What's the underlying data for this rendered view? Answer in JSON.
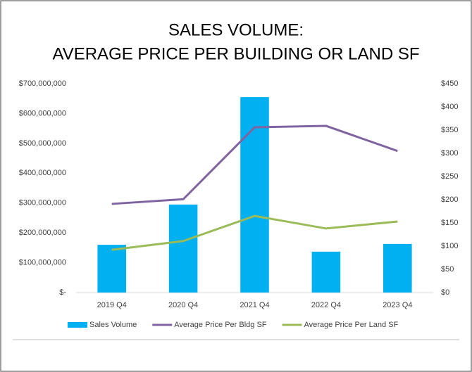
{
  "chart_data": {
    "type": "bar_line",
    "title": [
      "SALES VOLUME:",
      "AVERAGE PRICE PER BUILDING OR LAND SF"
    ],
    "categories": [
      "2019 Q4",
      "2020 Q4",
      "2021 Q4",
      "2022 Q4",
      "2023 Q4"
    ],
    "series": [
      {
        "name": "Sales Volume",
        "type": "bar",
        "color": "#00b0f0",
        "axis": "y",
        "values": [
          160000000,
          295000000,
          655000000,
          137000000,
          163000000
        ]
      },
      {
        "name": "Average Price Per Bldg SF",
        "type": "line",
        "color": "#8064a2",
        "axis": "y2",
        "values": [
          191,
          201,
          356,
          359,
          305
        ]
      },
      {
        "name": "Average Price Per Land SF",
        "type": "line",
        "color": "#9bbb59",
        "axis": "y2",
        "values": [
          92,
          111,
          165,
          138,
          153
        ]
      }
    ],
    "ylim": [
      0,
      700000000
    ],
    "yticks": [
      {
        "value": 0,
        "label": "$-"
      },
      {
        "value": 100000000,
        "label": "$100,000,000"
      },
      {
        "value": 200000000,
        "label": "$200,000,000"
      },
      {
        "value": 300000000,
        "label": "$300,000,000"
      },
      {
        "value": 400000000,
        "label": "$400,000,000"
      },
      {
        "value": 500000000,
        "label": "$500,000,000"
      },
      {
        "value": 600000000,
        "label": "$600,000,000"
      },
      {
        "value": 700000000,
        "label": "$700,000,000"
      }
    ],
    "y2lim": [
      0,
      450
    ],
    "y2ticks": [
      {
        "value": 0,
        "label": "$0"
      },
      {
        "value": 50,
        "label": "$50"
      },
      {
        "value": 100,
        "label": "$100"
      },
      {
        "value": 150,
        "label": "$150"
      },
      {
        "value": 200,
        "label": "$200"
      },
      {
        "value": 250,
        "label": "$250"
      },
      {
        "value": 300,
        "label": "$300"
      },
      {
        "value": 350,
        "label": "$350"
      },
      {
        "value": 400,
        "label": "$400"
      },
      {
        "value": 450,
        "label": "$450"
      }
    ],
    "grid": false,
    "legend": "bottom"
  }
}
